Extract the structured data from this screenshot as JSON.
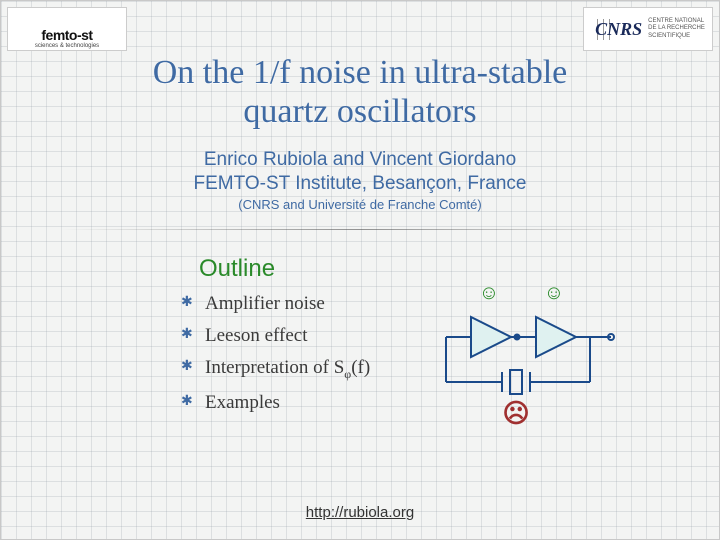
{
  "logos": {
    "left": {
      "name": "femto-st",
      "subtitle": "sciences & technologies",
      "bar_colors": [
        "#9944aa",
        "#2a6db8",
        "#5ab82a",
        "#2a2a2a"
      ]
    },
    "right": {
      "name_short": "CNRS",
      "caption_line1": "CENTRE NATIONAL",
      "caption_line2": "DE LA RECHERCHE",
      "caption_line3": "SCIENTIFIQUE"
    }
  },
  "title_line1": "On the 1/f noise in ultra-stable",
  "title_line2": "quartz oscillators",
  "authors": "Enrico Rubiola and Vincent Giordano",
  "institute": "FEMTO-ST Institute, Besançon, France",
  "affiliation": "(CNRS and Université de Franche Comté)",
  "outline_heading": "Outline",
  "outline_items": [
    "Amplifier noise",
    "Leeson effect",
    "Interpretation of S",
    "Examples"
  ],
  "outline_item3_subscript": "φ",
  "outline_item3_tail": "(f)",
  "diagram": {
    "stroke_color": "#1a4a8a",
    "stroke_width": 2,
    "triangle_fill": "#dff1f0",
    "happy_color": "#2a8a2a",
    "sad_color": "#a03030",
    "faces_happy": "☺",
    "face_sad": "☹"
  },
  "footer_url_text": "http://rubiola.org",
  "footer_url_href": "http://rubiola.org",
  "colors": {
    "title": "#3f6aa3",
    "outline_heading": "#2a8a2a",
    "bullet_text": "#3a3a3a",
    "bullet_marker": "#3f6aa3",
    "grid_bg": "#f3f4f3",
    "grid_line": "rgba(150,160,170,0.25)"
  }
}
